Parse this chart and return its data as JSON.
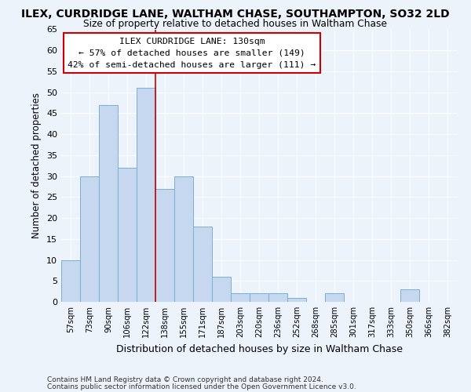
{
  "title": "ILEX, CURDRIDGE LANE, WALTHAM CHASE, SOUTHAMPTON, SO32 2LD",
  "subtitle": "Size of property relative to detached houses in Waltham Chase",
  "xlabel": "Distribution of detached houses by size in Waltham Chase",
  "ylabel": "Number of detached properties",
  "categories": [
    "57sqm",
    "73sqm",
    "90sqm",
    "106sqm",
    "122sqm",
    "138sqm",
    "155sqm",
    "171sqm",
    "187sqm",
    "203sqm",
    "220sqm",
    "236sqm",
    "252sqm",
    "268sqm",
    "285sqm",
    "301sqm",
    "317sqm",
    "333sqm",
    "350sqm",
    "366sqm",
    "382sqm"
  ],
  "values": [
    10,
    30,
    47,
    32,
    51,
    27,
    30,
    18,
    6,
    2,
    2,
    2,
    1,
    0,
    2,
    0,
    0,
    0,
    3,
    0,
    0
  ],
  "bar_color": "#c5d8f0",
  "bar_edge_color": "#7aafd4",
  "background_color": "#edf3fb",
  "grid_color": "#ffffff",
  "ylim": [
    0,
    65
  ],
  "yticks": [
    0,
    5,
    10,
    15,
    20,
    25,
    30,
    35,
    40,
    45,
    50,
    55,
    60,
    65
  ],
  "property_label": "ILEX CURDRIDGE LANE: 130sqm",
  "pct_smaller": "57% of detached houses are smaller (149)",
  "pct_larger": "42% of semi-detached houses are larger (111)",
  "annotation_box_color": "#ffffff",
  "annotation_box_edge": "#cc0000",
  "vline_x": 4.5,
  "vline_color": "#cc0000",
  "footnote1": "Contains HM Land Registry data © Crown copyright and database right 2024.",
  "footnote2": "Contains public sector information licensed under the Open Government Licence v3.0."
}
